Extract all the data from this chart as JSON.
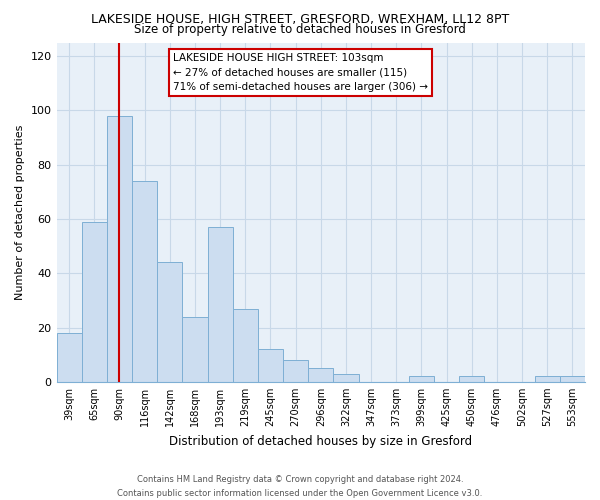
{
  "title": "LAKESIDE HOUSE, HIGH STREET, GRESFORD, WREXHAM, LL12 8PT",
  "subtitle": "Size of property relative to detached houses in Gresford",
  "xlabel": "Distribution of detached houses by size in Gresford",
  "ylabel": "Number of detached properties",
  "bar_labels": [
    "39sqm",
    "65sqm",
    "90sqm",
    "116sqm",
    "142sqm",
    "168sqm",
    "193sqm",
    "219sqm",
    "245sqm",
    "270sqm",
    "296sqm",
    "322sqm",
    "347sqm",
    "373sqm",
    "399sqm",
    "425sqm",
    "450sqm",
    "476sqm",
    "502sqm",
    "527sqm",
    "553sqm"
  ],
  "bar_values": [
    18,
    59,
    98,
    74,
    44,
    24,
    57,
    27,
    12,
    8,
    5,
    3,
    0,
    0,
    2,
    0,
    2,
    0,
    0,
    2,
    2
  ],
  "bar_color": "#ccddf0",
  "bar_edge_color": "#7eafd4",
  "marker_line_color": "#cc0000",
  "annotation_line1": "LAKESIDE HOUSE HIGH STREET: 103sqm",
  "annotation_line2": "← 27% of detached houses are smaller (115)",
  "annotation_line3": "71% of semi-detached houses are larger (306) →",
  "annotation_box_color": "#ffffff",
  "annotation_box_edge_color": "#cc0000",
  "ylim": [
    0,
    125
  ],
  "yticks": [
    0,
    20,
    40,
    60,
    80,
    100,
    120
  ],
  "footer_line1": "Contains HM Land Registry data © Crown copyright and database right 2024.",
  "footer_line2": "Contains public sector information licensed under the Open Government Licence v3.0.",
  "background_color": "#ffffff",
  "grid_color": "#c8d8e8"
}
